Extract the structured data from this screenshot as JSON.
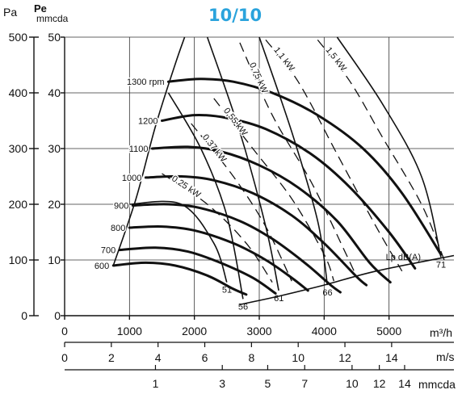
{
  "title": "10/10",
  "chart_data": {
    "type": "line",
    "title": "10/10",
    "xlabel": "m³/h",
    "ylabel_left": "Pa",
    "ylabel_right_bold": "Pe",
    "ylabel_right": "mmcda",
    "xlim": [
      0,
      6000
    ],
    "ylim": [
      0,
      500
    ],
    "x_ticks": [
      "0",
      "1000",
      "2000",
      "3000",
      "4000",
      "5000"
    ],
    "y_ticks_pa": [
      "0",
      "100",
      "200",
      "300",
      "400",
      "500"
    ],
    "y_ticks_mmcda": [
      "0",
      "10",
      "20",
      "30",
      "40",
      "50"
    ],
    "velocity_scale": {
      "unit": "m/s",
      "ticks": [
        {
          "label": "0",
          "flow": 0
        },
        {
          "label": "2",
          "flow": 720
        },
        {
          "label": "4",
          "flow": 1440
        },
        {
          "label": "6",
          "flow": 2160
        },
        {
          "label": "8",
          "flow": 2880
        },
        {
          "label": "10",
          "flow": 3600
        },
        {
          "label": "12",
          "flow": 4320
        },
        {
          "label": "14",
          "flow": 5040
        }
      ]
    },
    "dynamic_pressure_scale": {
      "unit": "mmcda",
      "ticks": [
        {
          "label": "1",
          "flow": 1400
        },
        {
          "label": "3",
          "flow": 2430
        },
        {
          "label": "5",
          "flow": 3130
        },
        {
          "label": "7",
          "flow": 3700
        },
        {
          "label": "10",
          "flow": 4430
        },
        {
          "label": "12",
          "flow": 4850
        },
        {
          "label": "14",
          "flow": 5240
        }
      ]
    },
    "speed_curves": [
      {
        "name": "1300 rpm",
        "points": [
          [
            1600,
            420
          ],
          [
            2100,
            425
          ],
          [
            2600,
            420
          ],
          [
            3200,
            400
          ],
          [
            3900,
            360
          ],
          [
            4600,
            300
          ],
          [
            5200,
            220
          ],
          [
            5800,
            110
          ]
        ]
      },
      {
        "name": "1200",
        "points": [
          [
            1500,
            350
          ],
          [
            2000,
            360
          ],
          [
            2500,
            355
          ],
          [
            3100,
            335
          ],
          [
            3800,
            290
          ],
          [
            4400,
            230
          ],
          [
            5000,
            150
          ],
          [
            5400,
            85
          ]
        ]
      },
      {
        "name": "1100",
        "points": [
          [
            1350,
            300
          ],
          [
            1900,
            303
          ],
          [
            2400,
            295
          ],
          [
            3000,
            270
          ],
          [
            3600,
            230
          ],
          [
            4200,
            170
          ],
          [
            4700,
            95
          ],
          [
            5020,
            60
          ]
        ]
      },
      {
        "name": "1000",
        "points": [
          [
            1250,
            248
          ],
          [
            1800,
            250
          ],
          [
            2300,
            243
          ],
          [
            2900,
            220
          ],
          [
            3500,
            180
          ],
          [
            4000,
            130
          ],
          [
            4500,
            70
          ],
          [
            4650,
            55
          ]
        ]
      },
      {
        "name": "900",
        "points": [
          [
            1050,
            198
          ],
          [
            1600,
            200
          ],
          [
            2100,
            193
          ],
          [
            2700,
            170
          ],
          [
            3200,
            138
          ],
          [
            3700,
            95
          ],
          [
            4100,
            55
          ],
          [
            4250,
            42
          ]
        ]
      },
      {
        "name": "800",
        "points": [
          [
            1000,
            158
          ],
          [
            1500,
            160
          ],
          [
            2000,
            153
          ],
          [
            2600,
            130
          ],
          [
            3100,
            100
          ],
          [
            3500,
            68
          ],
          [
            3750,
            45
          ]
        ]
      },
      {
        "name": "700",
        "points": [
          [
            850,
            118
          ],
          [
            1400,
            122
          ],
          [
            1900,
            115
          ],
          [
            2400,
            95
          ],
          [
            2900,
            68
          ],
          [
            3250,
            40
          ]
        ]
      },
      {
        "name": "600",
        "points": [
          [
            750,
            90
          ],
          [
            1250,
            95
          ],
          [
            1700,
            90
          ],
          [
            2200,
            72
          ],
          [
            2600,
            48
          ],
          [
            2800,
            38
          ]
        ]
      }
    ],
    "power_lines": [
      {
        "name": "0.25 kW",
        "points": [
          [
            1500,
            255
          ],
          [
            2200,
            200
          ],
          [
            2800,
            130
          ],
          [
            3200,
            60
          ]
        ]
      },
      {
        "name": "0.37 kW",
        "points": [
          [
            1950,
            345
          ],
          [
            2600,
            250
          ],
          [
            3100,
            160
          ],
          [
            3500,
            62
          ]
        ]
      },
      {
        "name": "0,55 kW",
        "points": [
          [
            2300,
            390
          ],
          [
            2900,
            300
          ],
          [
            3500,
            210
          ],
          [
            4000,
            110
          ],
          [
            4150,
            62
          ]
        ]
      },
      {
        "name": "0,75 kW",
        "points": [
          [
            2700,
            490
          ],
          [
            3200,
            360
          ],
          [
            3800,
            240
          ],
          [
            4300,
            120
          ],
          [
            4500,
            70
          ]
        ]
      },
      {
        "name": "1,1 kW",
        "points": [
          [
            3100,
            495
          ],
          [
            3600,
            420
          ],
          [
            4200,
            290
          ],
          [
            4800,
            160
          ],
          [
            5200,
            80
          ]
        ]
      },
      {
        "name": "1,5 kW",
        "points": [
          [
            3900,
            495
          ],
          [
            4400,
            420
          ],
          [
            4900,
            320
          ],
          [
            5500,
            200
          ],
          [
            5850,
            100
          ]
        ]
      }
    ],
    "system_curves": [
      {
        "name": "51",
        "points": [
          [
            1000,
            200
          ],
          [
            1800,
            200
          ],
          [
            2300,
            130
          ],
          [
            2500,
            60
          ]
        ]
      },
      {
        "name": "56",
        "points": [
          [
            1600,
            400
          ],
          [
            2100,
            300
          ],
          [
            2500,
            180
          ],
          [
            2750,
            30
          ]
        ]
      },
      {
        "name": "61",
        "points": [
          [
            2200,
            500
          ],
          [
            2700,
            330
          ],
          [
            3100,
            160
          ],
          [
            3300,
            45
          ]
        ]
      },
      {
        "name": "66",
        "points": [
          [
            3000,
            500
          ],
          [
            3500,
            330
          ],
          [
            3900,
            170
          ],
          [
            4050,
            55
          ]
        ]
      },
      {
        "name": "71",
        "points": [
          [
            4200,
            500
          ],
          [
            4900,
            380
          ],
          [
            5500,
            250
          ],
          [
            5800,
            105
          ]
        ]
      }
    ],
    "lower_boundary": {
      "name": "Lp dB(A)",
      "points": [
        [
          2700,
          20
        ],
        [
          3300,
          35
        ],
        [
          4000,
          55
        ],
        [
          4800,
          80
        ],
        [
          6000,
          108
        ]
      ]
    },
    "upper_boundary": {
      "points": [
        [
          750,
          90
        ],
        [
          1100,
          210
        ],
        [
          1400,
          340
        ],
        [
          1700,
          450
        ],
        [
          1850,
          500
        ]
      ]
    },
    "grid": true
  }
}
